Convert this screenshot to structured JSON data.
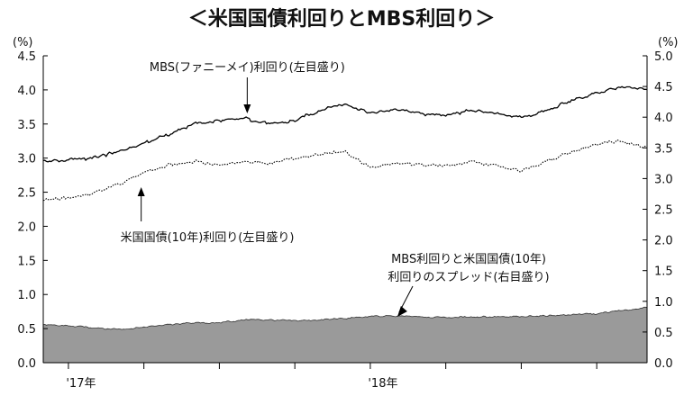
{
  "chart_data": {
    "type": "line",
    "title": "＜米国国債利回りとMBS利回り＞",
    "left_axis": {
      "unit": "(%)",
      "range": [
        0.0,
        4.5
      ],
      "ticks": [
        "0.0",
        "0.5",
        "1.0",
        "1.5",
        "2.0",
        "2.5",
        "3.0",
        "3.5",
        "4.0",
        "4.5"
      ]
    },
    "right_axis": {
      "unit": "(%)",
      "range": [
        0.0,
        5.0
      ],
      "ticks": [
        "0.0",
        "0.5",
        "1.0",
        "1.5",
        "2.0",
        "2.5",
        "3.0",
        "3.5",
        "4.0",
        "4.5",
        "5.0"
      ]
    },
    "x_axis": {
      "range": [
        "2016-12",
        "2018-12"
      ],
      "year_labels": [
        {
          "label": "'17年",
          "date": "2017-01"
        },
        {
          "label": "'18年",
          "date": "2018-01"
        }
      ]
    },
    "x": [
      "2016-12",
      "2017-01",
      "2017-02",
      "2017-03",
      "2017-04",
      "2017-05",
      "2017-06",
      "2017-07",
      "2017-08",
      "2017-09",
      "2017-10",
      "2017-11",
      "2017-12",
      "2018-01",
      "2018-02",
      "2018-03",
      "2018-04",
      "2018-05",
      "2018-06",
      "2018-07",
      "2018-08",
      "2018-09",
      "2018-10",
      "2018-11",
      "2018-12"
    ],
    "series": [
      {
        "name": "MBS(ファニーメイ)利回り(左目盛り)",
        "axis": "left",
        "style": "solid",
        "values": [
          2.95,
          2.97,
          3.0,
          3.1,
          3.22,
          3.35,
          3.5,
          3.55,
          3.58,
          3.5,
          3.55,
          3.7,
          3.8,
          3.65,
          3.72,
          3.65,
          3.62,
          3.7,
          3.65,
          3.6,
          3.7,
          3.85,
          3.95,
          4.05,
          4.02
        ]
      },
      {
        "name": "米国国債(10年)利回り(左目盛り)",
        "axis": "left",
        "style": "dotted",
        "values": [
          2.38,
          2.42,
          2.48,
          2.62,
          2.78,
          2.9,
          2.95,
          2.9,
          2.95,
          2.92,
          3.0,
          3.05,
          3.1,
          2.85,
          2.92,
          2.9,
          2.88,
          2.95,
          2.9,
          2.82,
          2.95,
          3.1,
          3.2,
          3.25,
          3.15
        ]
      },
      {
        "name": "MBS利回りと米国国債(10年)利回りのスプレッド(右目盛り)",
        "axis": "right",
        "style": "area",
        "values": [
          0.62,
          0.6,
          0.57,
          0.54,
          0.58,
          0.62,
          0.65,
          0.65,
          0.7,
          0.7,
          0.68,
          0.7,
          0.72,
          0.75,
          0.76,
          0.75,
          0.74,
          0.75,
          0.75,
          0.75,
          0.77,
          0.78,
          0.8,
          0.85,
          0.9
        ]
      }
    ],
    "annotations": [
      {
        "text": "MBS(ファニーメイ)利回り(左目盛り)",
        "series": 0,
        "at": "2017-08"
      },
      {
        "text": "米国国債(10年)利回り(左目盛り)",
        "series": 1,
        "at": "2017-04"
      },
      {
        "text": "MBS利回りと米国国債(10年)",
        "line2": "利回りのスプレッド(右目盛り)",
        "series": 2,
        "at": "2018-01"
      }
    ],
    "colors": {
      "mbs": "#000000",
      "treasury": "#000000",
      "spread_fill": "#9a9a9a",
      "spread_stroke": "#333333"
    }
  }
}
